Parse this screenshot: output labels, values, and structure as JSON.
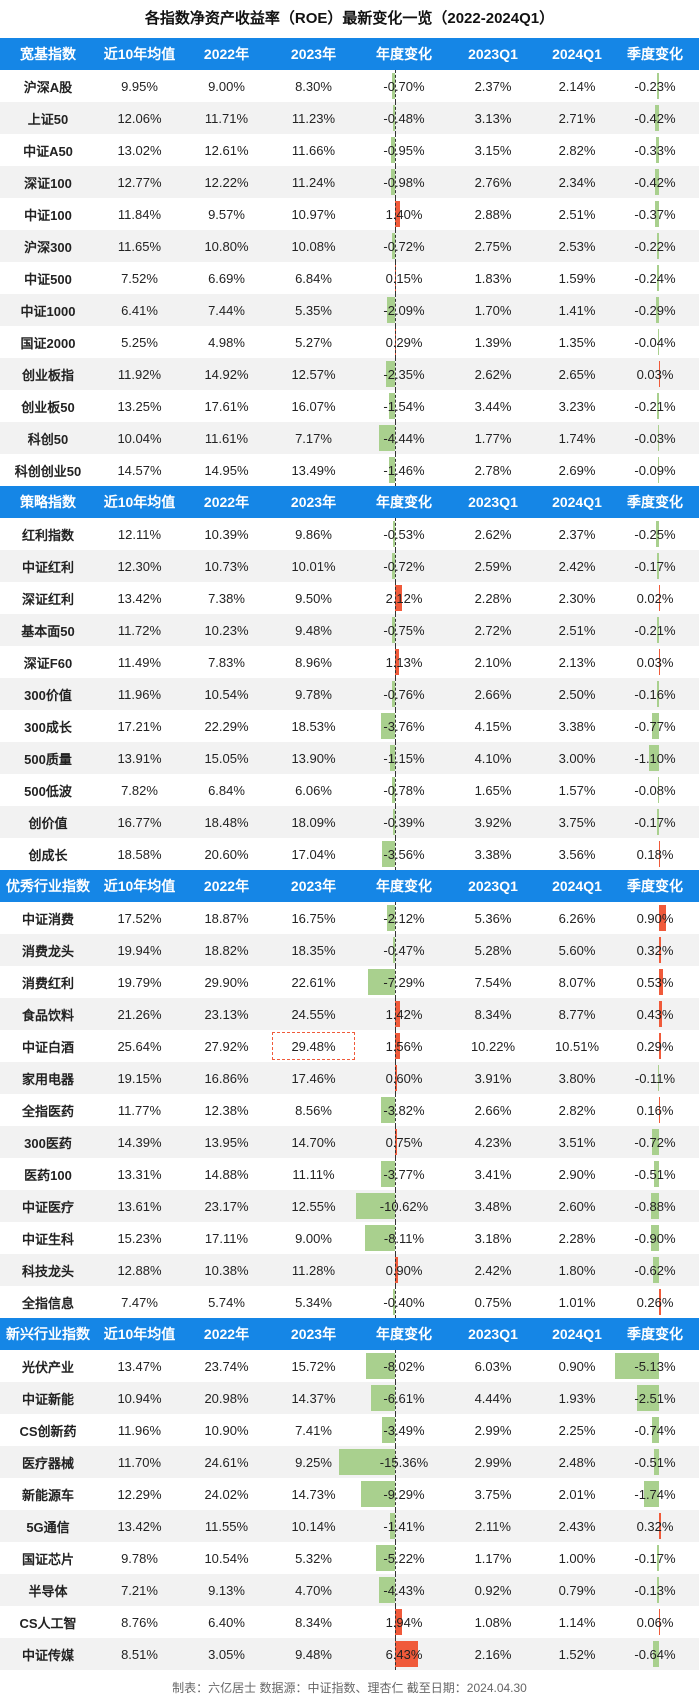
{
  "title": "各指数净资产收益率（ROE）最新变化一览（2022-2024Q1）",
  "colors": {
    "header": "#1586e6",
    "neg_bar": "#a9d08e",
    "pos_bar": "#f05a3a"
  },
  "columns": [
    "近10年均值",
    "2022年",
    "2023年",
    "年度变化",
    "2023Q1",
    "2024Q1",
    "季度变化"
  ],
  "sections": [
    {
      "title": "宽基指数",
      "rows": [
        {
          "name": "沪深A股",
          "avg10": "9.95%",
          "y2022": "9.00%",
          "y2023": "8.30%",
          "ychg": "-0.70%",
          "yv": -0.7,
          "q2023": "2.37%",
          "q2024": "2.14%",
          "qchg": "-0.23%",
          "qv": -0.23
        },
        {
          "name": "上证50",
          "avg10": "12.06%",
          "y2022": "11.71%",
          "y2023": "11.23%",
          "ychg": "-0.48%",
          "yv": -0.48,
          "q2023": "3.13%",
          "q2024": "2.71%",
          "qchg": "-0.42%",
          "qv": -0.42
        },
        {
          "name": "中证A50",
          "avg10": "13.02%",
          "y2022": "12.61%",
          "y2023": "11.66%",
          "ychg": "-0.95%",
          "yv": -0.95,
          "q2023": "3.15%",
          "q2024": "2.82%",
          "qchg": "-0.33%",
          "qv": -0.33
        },
        {
          "name": "深证100",
          "avg10": "12.77%",
          "y2022": "12.22%",
          "y2023": "11.24%",
          "ychg": "-0.98%",
          "yv": -0.98,
          "q2023": "2.76%",
          "q2024": "2.34%",
          "qchg": "-0.42%",
          "qv": -0.42
        },
        {
          "name": "中证100",
          "avg10": "11.84%",
          "y2022": "9.57%",
          "y2023": "10.97%",
          "ychg": "1.40%",
          "yv": 1.4,
          "q2023": "2.88%",
          "q2024": "2.51%",
          "qchg": "-0.37%",
          "qv": -0.37
        },
        {
          "name": "沪深300",
          "avg10": "11.65%",
          "y2022": "10.80%",
          "y2023": "10.08%",
          "ychg": "-0.72%",
          "yv": -0.72,
          "q2023": "2.75%",
          "q2024": "2.53%",
          "qchg": "-0.22%",
          "qv": -0.22
        },
        {
          "name": "中证500",
          "avg10": "7.52%",
          "y2022": "6.69%",
          "y2023": "6.84%",
          "ychg": "0.15%",
          "yv": 0.15,
          "q2023": "1.83%",
          "q2024": "1.59%",
          "qchg": "-0.24%",
          "qv": -0.24
        },
        {
          "name": "中证1000",
          "avg10": "6.41%",
          "y2022": "7.44%",
          "y2023": "5.35%",
          "ychg": "-2.09%",
          "yv": -2.09,
          "q2023": "1.70%",
          "q2024": "1.41%",
          "qchg": "-0.29%",
          "qv": -0.29
        },
        {
          "name": "国证2000",
          "avg10": "5.25%",
          "y2022": "4.98%",
          "y2023": "5.27%",
          "ychg": "0.29%",
          "yv": 0.29,
          "q2023": "1.39%",
          "q2024": "1.35%",
          "qchg": "-0.04%",
          "qv": -0.04
        },
        {
          "name": "创业板指",
          "avg10": "11.92%",
          "y2022": "14.92%",
          "y2023": "12.57%",
          "ychg": "-2.35%",
          "yv": -2.35,
          "q2023": "2.62%",
          "q2024": "2.65%",
          "qchg": "0.03%",
          "qv": 0.03
        },
        {
          "name": "创业板50",
          "avg10": "13.25%",
          "y2022": "17.61%",
          "y2023": "16.07%",
          "ychg": "-1.54%",
          "yv": -1.54,
          "q2023": "3.44%",
          "q2024": "3.23%",
          "qchg": "-0.21%",
          "qv": -0.21
        },
        {
          "name": "科创50",
          "avg10": "10.04%",
          "y2022": "11.61%",
          "y2023": "7.17%",
          "ychg": "-4.44%",
          "yv": -4.44,
          "q2023": "1.77%",
          "q2024": "1.74%",
          "qchg": "-0.03%",
          "qv": -0.03
        },
        {
          "name": "科创创业50",
          "avg10": "14.57%",
          "y2022": "14.95%",
          "y2023": "13.49%",
          "ychg": "-1.46%",
          "yv": -1.46,
          "q2023": "2.78%",
          "q2024": "2.69%",
          "qchg": "-0.09%",
          "qv": -0.09
        }
      ]
    },
    {
      "title": "策略指数",
      "rows": [
        {
          "name": "红利指数",
          "avg10": "12.11%",
          "y2022": "10.39%",
          "y2023": "9.86%",
          "ychg": "-0.53%",
          "yv": -0.53,
          "q2023": "2.62%",
          "q2024": "2.37%",
          "qchg": "-0.25%",
          "qv": -0.25
        },
        {
          "name": "中证红利",
          "avg10": "12.30%",
          "y2022": "10.73%",
          "y2023": "10.01%",
          "ychg": "-0.72%",
          "yv": -0.72,
          "q2023": "2.59%",
          "q2024": "2.42%",
          "qchg": "-0.17%",
          "qv": -0.17
        },
        {
          "name": "深证红利",
          "avg10": "13.42%",
          "y2022": "7.38%",
          "y2023": "9.50%",
          "ychg": "2.12%",
          "yv": 2.12,
          "q2023": "2.28%",
          "q2024": "2.30%",
          "qchg": "0.02%",
          "qv": 0.02
        },
        {
          "name": "基本面50",
          "avg10": "11.72%",
          "y2022": "10.23%",
          "y2023": "9.48%",
          "ychg": "-0.75%",
          "yv": -0.75,
          "q2023": "2.72%",
          "q2024": "2.51%",
          "qchg": "-0.21%",
          "qv": -0.21
        },
        {
          "name": "深证F60",
          "avg10": "11.49%",
          "y2022": "7.83%",
          "y2023": "8.96%",
          "ychg": "1.13%",
          "yv": 1.13,
          "q2023": "2.10%",
          "q2024": "2.13%",
          "qchg": "0.03%",
          "qv": 0.03
        },
        {
          "name": "300价值",
          "avg10": "11.96%",
          "y2022": "10.54%",
          "y2023": "9.78%",
          "ychg": "-0.76%",
          "yv": -0.76,
          "q2023": "2.66%",
          "q2024": "2.50%",
          "qchg": "-0.16%",
          "qv": -0.16
        },
        {
          "name": "300成长",
          "avg10": "17.21%",
          "y2022": "22.29%",
          "y2023": "18.53%",
          "ychg": "-3.76%",
          "yv": -3.76,
          "q2023": "4.15%",
          "q2024": "3.38%",
          "qchg": "-0.77%",
          "qv": -0.77
        },
        {
          "name": "500质量",
          "avg10": "13.91%",
          "y2022": "15.05%",
          "y2023": "13.90%",
          "ychg": "-1.15%",
          "yv": -1.15,
          "q2023": "4.10%",
          "q2024": "3.00%",
          "qchg": "-1.10%",
          "qv": -1.1
        },
        {
          "name": "500低波",
          "avg10": "7.82%",
          "y2022": "6.84%",
          "y2023": "6.06%",
          "ychg": "-0.78%",
          "yv": -0.78,
          "q2023": "1.65%",
          "q2024": "1.57%",
          "qchg": "-0.08%",
          "qv": -0.08
        },
        {
          "name": "创价值",
          "avg10": "16.77%",
          "y2022": "18.48%",
          "y2023": "18.09%",
          "ychg": "-0.39%",
          "yv": -0.39,
          "q2023": "3.92%",
          "q2024": "3.75%",
          "qchg": "-0.17%",
          "qv": -0.17
        },
        {
          "name": "创成长",
          "avg10": "18.58%",
          "y2022": "20.60%",
          "y2023": "17.04%",
          "ychg": "-3.56%",
          "yv": -3.56,
          "q2023": "3.38%",
          "q2024": "3.56%",
          "qchg": "0.18%",
          "qv": 0.18
        }
      ]
    },
    {
      "title": "优秀行业指数",
      "rows": [
        {
          "name": "中证消费",
          "avg10": "17.52%",
          "y2022": "18.87%",
          "y2023": "16.75%",
          "ychg": "-2.12%",
          "yv": -2.12,
          "q2023": "5.36%",
          "q2024": "6.26%",
          "qchg": "0.90%",
          "qv": 0.9
        },
        {
          "name": "消费龙头",
          "avg10": "19.94%",
          "y2022": "18.82%",
          "y2023": "18.35%",
          "ychg": "-0.47%",
          "yv": -0.47,
          "q2023": "5.28%",
          "q2024": "5.60%",
          "qchg": "0.32%",
          "qv": 0.32
        },
        {
          "name": "消费红利",
          "avg10": "19.79%",
          "y2022": "29.90%",
          "y2023": "22.61%",
          "ychg": "-7.29%",
          "yv": -7.29,
          "q2023": "7.54%",
          "q2024": "8.07%",
          "qchg": "0.53%",
          "qv": 0.53
        },
        {
          "name": "食品饮料",
          "avg10": "21.26%",
          "y2022": "23.13%",
          "y2023": "24.55%",
          "ychg": "1.42%",
          "yv": 1.42,
          "q2023": "8.34%",
          "q2024": "8.77%",
          "qchg": "0.43%",
          "qv": 0.43
        },
        {
          "name": "中证白酒",
          "avg10": "25.64%",
          "y2022": "27.92%",
          "y2023": "29.48%",
          "ychg": "1.56%",
          "yv": 1.56,
          "q2023": "10.22%",
          "q2024": "10.51%",
          "qchg": "0.29%",
          "qv": 0.29,
          "hl": true
        },
        {
          "name": "家用电器",
          "avg10": "19.15%",
          "y2022": "16.86%",
          "y2023": "17.46%",
          "ychg": "0.60%",
          "yv": 0.6,
          "q2023": "3.91%",
          "q2024": "3.80%",
          "qchg": "-0.11%",
          "qv": -0.11
        },
        {
          "name": "全指医药",
          "avg10": "11.77%",
          "y2022": "12.38%",
          "y2023": "8.56%",
          "ychg": "-3.82%",
          "yv": -3.82,
          "q2023": "2.66%",
          "q2024": "2.82%",
          "qchg": "0.16%",
          "qv": 0.16
        },
        {
          "name": "300医药",
          "avg10": "14.39%",
          "y2022": "13.95%",
          "y2023": "14.70%",
          "ychg": "0.75%",
          "yv": 0.75,
          "q2023": "4.23%",
          "q2024": "3.51%",
          "qchg": "-0.72%",
          "qv": -0.72
        },
        {
          "name": "医药100",
          "avg10": "13.31%",
          "y2022": "14.88%",
          "y2023": "11.11%",
          "ychg": "-3.77%",
          "yv": -3.77,
          "q2023": "3.41%",
          "q2024": "2.90%",
          "qchg": "-0.51%",
          "qv": -0.51
        },
        {
          "name": "中证医疗",
          "avg10": "13.61%",
          "y2022": "23.17%",
          "y2023": "12.55%",
          "ychg": "-10.62%",
          "yv": -10.62,
          "q2023": "3.48%",
          "q2024": "2.60%",
          "qchg": "-0.88%",
          "qv": -0.88
        },
        {
          "name": "中证生科",
          "avg10": "15.23%",
          "y2022": "17.11%",
          "y2023": "9.00%",
          "ychg": "-8.11%",
          "yv": -8.11,
          "q2023": "3.18%",
          "q2024": "2.28%",
          "qchg": "-0.90%",
          "qv": -0.9
        },
        {
          "name": "科技龙头",
          "avg10": "12.88%",
          "y2022": "10.38%",
          "y2023": "11.28%",
          "ychg": "0.90%",
          "yv": 0.9,
          "q2023": "2.42%",
          "q2024": "1.80%",
          "qchg": "-0.62%",
          "qv": -0.62
        },
        {
          "name": "全指信息",
          "avg10": "7.47%",
          "y2022": "5.74%",
          "y2023": "5.34%",
          "ychg": "-0.40%",
          "yv": -0.4,
          "q2023": "0.75%",
          "q2024": "1.01%",
          "qchg": "0.26%",
          "qv": 0.26
        }
      ]
    },
    {
      "title": "新兴行业指数",
      "rows": [
        {
          "name": "光伏产业",
          "avg10": "13.47%",
          "y2022": "23.74%",
          "y2023": "15.72%",
          "ychg": "-8.02%",
          "yv": -8.02,
          "q2023": "6.03%",
          "q2024": "0.90%",
          "qchg": "-5.13%",
          "qv": -5.13
        },
        {
          "name": "中证新能",
          "avg10": "10.94%",
          "y2022": "20.98%",
          "y2023": "14.37%",
          "ychg": "-6.61%",
          "yv": -6.61,
          "q2023": "4.44%",
          "q2024": "1.93%",
          "qchg": "-2.51%",
          "qv": -2.51
        },
        {
          "name": "CS创新药",
          "avg10": "11.96%",
          "y2022": "10.90%",
          "y2023": "7.41%",
          "ychg": "-3.49%",
          "yv": -3.49,
          "q2023": "2.99%",
          "q2024": "2.25%",
          "qchg": "-0.74%",
          "qv": -0.74
        },
        {
          "name": "医疗器械",
          "avg10": "11.70%",
          "y2022": "24.61%",
          "y2023": "9.25%",
          "ychg": "-15.36%",
          "yv": -15.36,
          "q2023": "2.99%",
          "q2024": "2.48%",
          "qchg": "-0.51%",
          "qv": -0.51
        },
        {
          "name": "新能源车",
          "avg10": "12.29%",
          "y2022": "24.02%",
          "y2023": "14.73%",
          "ychg": "-9.29%",
          "yv": -9.29,
          "q2023": "3.75%",
          "q2024": "2.01%",
          "qchg": "-1.74%",
          "qv": -1.74
        },
        {
          "name": "5G通信",
          "avg10": "13.42%",
          "y2022": "11.55%",
          "y2023": "10.14%",
          "ychg": "-1.41%",
          "yv": -1.41,
          "q2023": "2.11%",
          "q2024": "2.43%",
          "qchg": "0.32%",
          "qv": 0.32
        },
        {
          "name": "国证芯片",
          "avg10": "9.78%",
          "y2022": "10.54%",
          "y2023": "5.32%",
          "ychg": "-5.22%",
          "yv": -5.22,
          "q2023": "1.17%",
          "q2024": "1.00%",
          "qchg": "-0.17%",
          "qv": -0.17
        },
        {
          "name": "半导体",
          "avg10": "7.21%",
          "y2022": "9.13%",
          "y2023": "4.70%",
          "ychg": "-4.43%",
          "yv": -4.43,
          "q2023": "0.92%",
          "q2024": "0.79%",
          "qchg": "-0.13%",
          "qv": -0.13
        },
        {
          "name": "CS人工智",
          "avg10": "8.76%",
          "y2022": "6.40%",
          "y2023": "8.34%",
          "ychg": "1.94%",
          "yv": 1.94,
          "q2023": "1.08%",
          "q2024": "1.14%",
          "qchg": "0.06%",
          "qv": 0.06
        },
        {
          "name": "中证传媒",
          "avg10": "8.51%",
          "y2022": "3.05%",
          "y2023": "9.48%",
          "ychg": "6.43%",
          "yv": 6.43,
          "q2023": "2.16%",
          "q2024": "1.52%",
          "qchg": "-0.64%",
          "qv": -0.64
        }
      ]
    }
  ],
  "footer": "制表：六亿居士  数据源：中证指数、理杏仁  截至日期：2024.04.30"
}
